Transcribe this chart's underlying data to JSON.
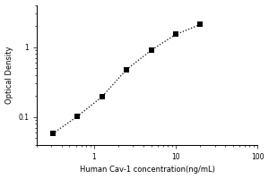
{
  "x_data": [
    0.313,
    0.625,
    1.25,
    2.5,
    5.0,
    10.0,
    20.0
  ],
  "y_data": [
    0.058,
    0.102,
    0.195,
    0.478,
    0.9,
    1.52,
    2.1
  ],
  "xlabel": "Human Cav-1 concentration(ng/mL)",
  "ylabel": "Optical Density",
  "xlim": [
    0.2,
    100
  ],
  "ylim": [
    0.04,
    4
  ],
  "yticks": [
    0.1,
    1
  ],
  "xticks": [
    1,
    10,
    100
  ],
  "line_color": "#000000",
  "marker_color": "#000000",
  "background_color": "#ffffff",
  "marker_style": "s",
  "marker_size": 4,
  "xlabel_fontsize": 6.0,
  "ylabel_fontsize": 6.0,
  "tick_fontsize": 5.5
}
